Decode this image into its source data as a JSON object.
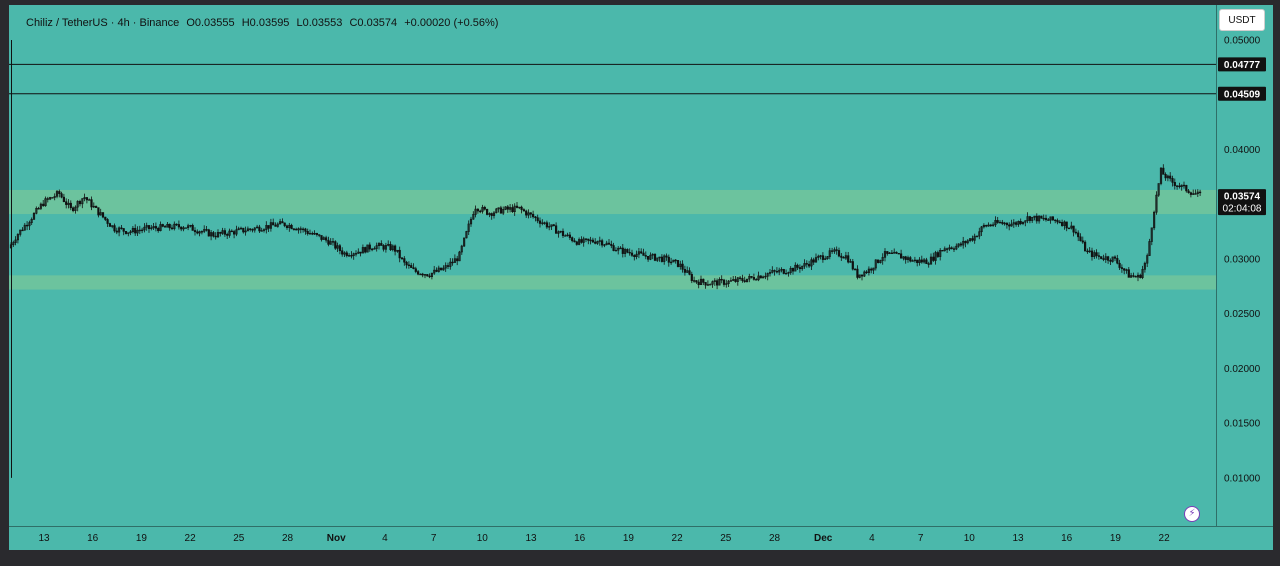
{
  "legend": {
    "symbol": "Chiliz / TetherUS · 4h · Binance",
    "open": "O0.03555",
    "high": "H0.03595",
    "low": "L0.03553",
    "close": "C0.03574",
    "change": "+0.00020 (+0.56%)"
  },
  "toolbar": {
    "currency_label": "USDT"
  },
  "colors": {
    "background": "#4bb8ab",
    "zone": "#6cc39e",
    "candle": "#111111",
    "frame": "#2a2a2e"
  },
  "chart_data": {
    "type": "candlestick",
    "y_axis": {
      "ticks": [
        "0.05000",
        "0.04500",
        "0.04000",
        "0.03500",
        "0.03000",
        "0.02500",
        "0.02000",
        "0.01500",
        "0.01000"
      ],
      "tick_values": [
        0.05,
        0.045,
        0.04,
        0.035,
        0.03,
        0.025,
        0.02,
        0.015,
        0.01
      ],
      "range": [
        0.0056,
        0.0532
      ]
    },
    "x_axis": {
      "ticks": [
        "13",
        "16",
        "19",
        "22",
        "25",
        "28",
        "Nov",
        "4",
        "7",
        "10",
        "13",
        "16",
        "19",
        "22",
        "25",
        "28",
        "Dec",
        "4",
        "7",
        "10",
        "13",
        "16",
        "19",
        "22"
      ],
      "bold_ticks": [
        "Nov",
        "Dec"
      ]
    },
    "horizontal_lines": [
      {
        "value": 0.04777,
        "label": "0.04777"
      },
      {
        "value": 0.04509,
        "label": "0.04509"
      }
    ],
    "zones": [
      {
        "from": 0.0341,
        "to": 0.0363
      },
      {
        "from": 0.0272,
        "to": 0.0285
      }
    ],
    "current_price": {
      "value": 0.03574,
      "label": "0.03574",
      "countdown": "02:04:08"
    },
    "price_path": [
      [
        0,
        0.031
      ],
      [
        8,
        0.0322
      ],
      [
        20,
        0.0335
      ],
      [
        35,
        0.0352
      ],
      [
        50,
        0.036
      ],
      [
        62,
        0.0345
      ],
      [
        75,
        0.0357
      ],
      [
        90,
        0.0342
      ],
      [
        105,
        0.0328
      ],
      [
        120,
        0.0325
      ],
      [
        140,
        0.0328
      ],
      [
        160,
        0.0329
      ],
      [
        175,
        0.033
      ],
      [
        190,
        0.0326
      ],
      [
        205,
        0.0322
      ],
      [
        220,
        0.0324
      ],
      [
        240,
        0.0327
      ],
      [
        260,
        0.033
      ],
      [
        275,
        0.0332
      ],
      [
        290,
        0.0328
      ],
      [
        305,
        0.0322
      ],
      [
        320,
        0.0316
      ],
      [
        335,
        0.0305
      ],
      [
        350,
        0.0307
      ],
      [
        365,
        0.0312
      ],
      [
        385,
        0.031
      ],
      [
        395,
        0.0296
      ],
      [
        405,
        0.0289
      ],
      [
        420,
        0.0286
      ],
      [
        435,
        0.0291
      ],
      [
        450,
        0.0302
      ],
      [
        458,
        0.0325
      ],
      [
        466,
        0.0348
      ],
      [
        480,
        0.0342
      ],
      [
        495,
        0.0345
      ],
      [
        510,
        0.0346
      ],
      [
        525,
        0.0338
      ],
      [
        540,
        0.033
      ],
      [
        555,
        0.0322
      ],
      [
        570,
        0.0315
      ],
      [
        590,
        0.0317
      ],
      [
        610,
        0.0308
      ],
      [
        625,
        0.0305
      ],
      [
        640,
        0.0302
      ],
      [
        655,
        0.03
      ],
      [
        670,
        0.0295
      ],
      [
        685,
        0.028
      ],
      [
        700,
        0.0278
      ],
      [
        720,
        0.0279
      ],
      [
        740,
        0.0282
      ],
      [
        760,
        0.0287
      ],
      [
        780,
        0.029
      ],
      [
        795,
        0.0294
      ],
      [
        810,
        0.0301
      ],
      [
        825,
        0.0306
      ],
      [
        838,
        0.0302
      ],
      [
        848,
        0.0285
      ],
      [
        860,
        0.029
      ],
      [
        875,
        0.0304
      ],
      [
        890,
        0.0303
      ],
      [
        905,
        0.0298
      ],
      [
        920,
        0.0298
      ],
      [
        935,
        0.031
      ],
      [
        950,
        0.0312
      ],
      [
        965,
        0.032
      ],
      [
        975,
        0.033
      ],
      [
        990,
        0.0333
      ],
      [
        1005,
        0.0332
      ],
      [
        1020,
        0.0338
      ],
      [
        1035,
        0.0336
      ],
      [
        1050,
        0.0335
      ],
      [
        1065,
        0.0327
      ],
      [
        1078,
        0.0306
      ],
      [
        1090,
        0.0302
      ],
      [
        1105,
        0.03
      ],
      [
        1120,
        0.0285
      ],
      [
        1130,
        0.0283
      ],
      [
        1138,
        0.03
      ],
      [
        1145,
        0.0345
      ],
      [
        1152,
        0.038
      ],
      [
        1160,
        0.0372
      ],
      [
        1170,
        0.0367
      ],
      [
        1185,
        0.036
      ],
      [
        1193,
        0.0357
      ]
    ]
  }
}
